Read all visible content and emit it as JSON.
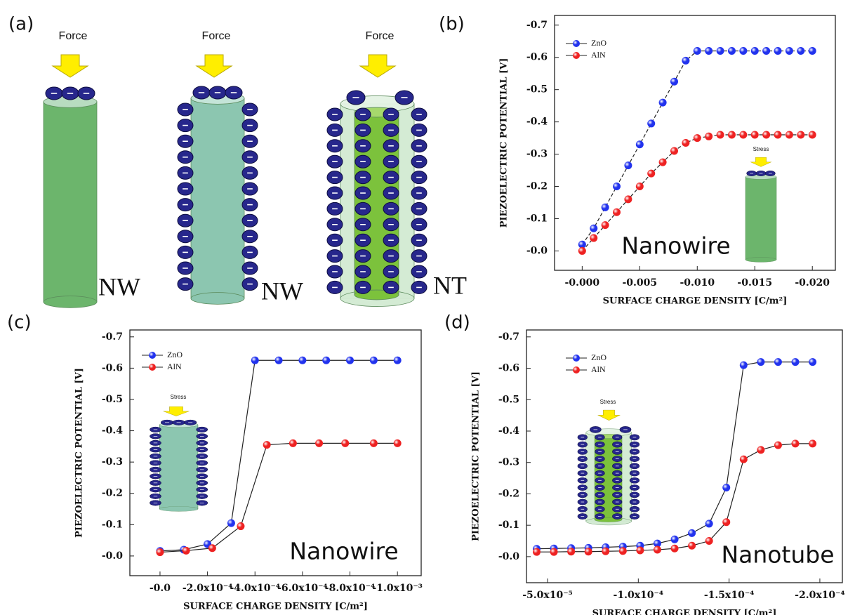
{
  "panel_a": {
    "label": "(a)",
    "force_labels": [
      "Force",
      "Force",
      "Force"
    ],
    "structure_labels": [
      "NW",
      "NW",
      "NT"
    ]
  },
  "chart_data": [
    {
      "type": "line",
      "panel_label": "(b)",
      "xlabel": "SURFACE CHARGE DENSITY [C/m²]",
      "ylabel": "PIEZOELECTRIC POTENTIAL [V]",
      "annotation": "Nanowire",
      "inset_label": "Stress",
      "line_style": "dashed",
      "legend": "upper left",
      "x": [
        0,
        -0.001,
        -0.002,
        -0.003,
        -0.004,
        -0.005,
        -0.006,
        -0.007,
        -0.008,
        -0.009,
        -0.01,
        -0.011,
        -0.012,
        -0.013,
        -0.014,
        -0.015,
        -0.016,
        -0.017,
        -0.018,
        -0.019,
        -0.02
      ],
      "series": [
        {
          "name": "ZnO",
          "color": "#2233ee",
          "values": [
            -0.02,
            -0.07,
            -0.135,
            -0.2,
            -0.265,
            -0.33,
            -0.395,
            -0.46,
            -0.525,
            -0.59,
            -0.62,
            -0.62,
            -0.62,
            -0.62,
            -0.62,
            -0.62,
            -0.62,
            -0.62,
            -0.62,
            -0.62,
            -0.62
          ]
        },
        {
          "name": "AlN",
          "color": "#ee2222",
          "values": [
            0,
            -0.04,
            -0.08,
            -0.12,
            -0.16,
            -0.2,
            -0.24,
            -0.275,
            -0.31,
            -0.335,
            -0.35,
            -0.355,
            -0.36,
            -0.36,
            -0.36,
            -0.36,
            -0.36,
            -0.36,
            -0.36,
            -0.36,
            -0.36
          ]
        }
      ],
      "xlim": [
        0.0024,
        -0.022
      ],
      "ylim": [
        0.06,
        -0.73
      ],
      "xticks": [
        {
          "value": 0,
          "label": "-0.000"
        },
        -0.005,
        {
          "value": -0.01,
          "label": "-0.010"
        },
        -0.015,
        {
          "value": -0.02,
          "label": "-0.020"
        }
      ],
      "yticks": [
        {
          "value": 0,
          "label": "-0.0"
        },
        -0.1,
        -0.2,
        -0.3,
        -0.4,
        -0.5,
        -0.6,
        -0.7
      ]
    },
    {
      "type": "line",
      "panel_label": "(c)",
      "xlabel": "SURFACE CHARGE DENSITY [C/m²]",
      "ylabel": "PIEZOELECTRIC POTENTIAL [V]",
      "annotation": "Nanowire",
      "inset_label": "Stress",
      "line_style": "solid",
      "legend": "upper left",
      "series": [
        {
          "name": "ZnO",
          "color": "#2233ee",
          "x": [
            0,
            -0.0001,
            -0.0002,
            -0.0003,
            -0.0004,
            -0.0005,
            -0.0006,
            -0.0007,
            -0.0008,
            -0.0009,
            -0.001
          ],
          "values": [
            -0.016,
            -0.02,
            -0.038,
            -0.105,
            -0.625,
            -0.625,
            -0.625,
            -0.625,
            -0.625,
            -0.625,
            -0.625
          ]
        },
        {
          "name": "AlN",
          "color": "#ee2222",
          "x": [
            0,
            -0.00011,
            -0.00022,
            -0.00034,
            -0.00045,
            -0.00056,
            -0.00067,
            -0.00078,
            -0.0009,
            -0.001
          ],
          "values": [
            -0.012,
            -0.017,
            -0.025,
            -0.095,
            -0.355,
            -0.36,
            -0.36,
            -0.36,
            -0.36,
            -0.36
          ]
        }
      ],
      "xlim": [
        0.000127,
        -0.0011
      ],
      "ylim": [
        0.063,
        -0.722
      ],
      "xticks": [
        {
          "value": 0,
          "label": "-0.0"
        },
        {
          "value": -0.0002,
          "label": "-2.0x10⁻⁴"
        },
        {
          "value": -0.0004,
          "label": "-4.0x10⁻⁴"
        },
        {
          "value": -0.0006,
          "label": "-6.0x10⁻⁴"
        },
        {
          "value": -0.0008,
          "label": "-8.0x10⁻⁴"
        },
        {
          "value": -0.001,
          "label": "-1.0x10⁻³"
        }
      ],
      "yticks": [
        {
          "value": 0,
          "label": "-0.0"
        },
        -0.1,
        -0.2,
        -0.3,
        -0.4,
        -0.5,
        -0.6,
        -0.7
      ]
    },
    {
      "type": "line",
      "panel_label": "(d)",
      "xlabel": "SURFACE CHARGE DENSITY [C/m²]",
      "ylabel": "PIEZOELECTRIC POTENTIAL [V]",
      "annotation": "Nanotube",
      "inset_label": "Stress",
      "line_style": "solid",
      "legend": "upper left",
      "x": [
        -4.4e-05,
        -5.35e-05,
        -6.3e-05,
        -7.25e-05,
        -8.2e-05,
        -9.15e-05,
        -0.000101,
        -0.0001105,
        -0.00012,
        -0.0001295,
        -0.000139,
        -0.0001485,
        -0.000158,
        -0.0001675,
        -0.000177,
        -0.0001865,
        -0.000196
      ],
      "series": [
        {
          "name": "ZnO",
          "color": "#2233ee",
          "values": [
            -0.025,
            -0.026,
            -0.027,
            -0.028,
            -0.03,
            -0.032,
            -0.035,
            -0.042,
            -0.055,
            -0.075,
            -0.105,
            -0.22,
            -0.61,
            -0.62,
            -0.62,
            -0.62,
            -0.62
          ]
        },
        {
          "name": "AlN",
          "color": "#ee2222",
          "values": [
            -0.015,
            -0.015,
            -0.016,
            -0.016,
            -0.017,
            -0.018,
            -0.02,
            -0.022,
            -0.026,
            -0.035,
            -0.05,
            -0.11,
            -0.31,
            -0.34,
            -0.355,
            -0.36,
            -0.36
          ]
        }
      ],
      "xlim": [
        -3.84e-05,
        -0.0002124
      ],
      "ylim": [
        0.083,
        -0.722
      ],
      "xticks": [
        {
          "value": -5e-05,
          "label": "-5.0x10⁻⁵"
        },
        {
          "value": -0.0001,
          "label": "-1.0x10⁻⁴"
        },
        {
          "value": -0.00015,
          "label": "-1.5x10⁻⁴"
        },
        {
          "value": -0.0002,
          "label": "-2.0x10⁻⁴"
        }
      ],
      "yticks": [
        {
          "value": 0,
          "label": "-0.0"
        },
        -0.1,
        -0.2,
        -0.3,
        -0.4,
        -0.5,
        -0.6,
        -0.7
      ]
    }
  ]
}
